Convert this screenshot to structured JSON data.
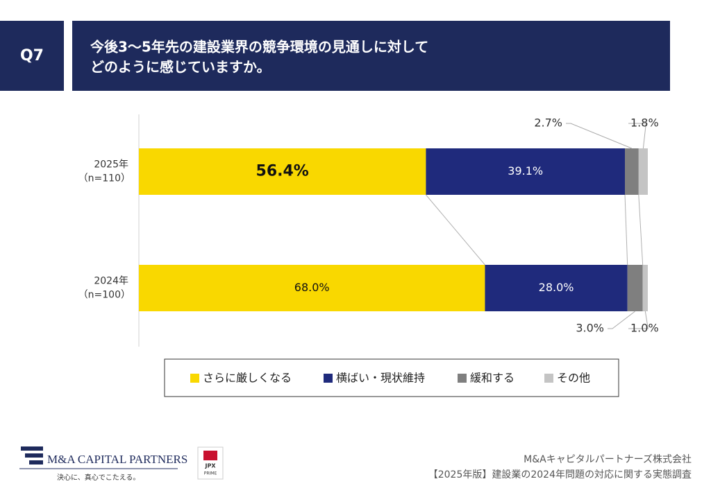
{
  "header": {
    "number": "Q7",
    "question_lines": [
      "今後3～5年先の建設業界の競争環境の見通しに対して",
      "どのように感じていますか。"
    ]
  },
  "chart_data": {
    "type": "stacked-bar-horizontal",
    "categories": [
      "2025年",
      "2024年"
    ],
    "sample_sizes": [
      "（n=110）",
      "（n=100）"
    ],
    "xlim": [
      0,
      100
    ],
    "series": [
      {
        "name": "さらに厳しくなる",
        "color": "#f9d800",
        "values": [
          56.4,
          68.0
        ],
        "value_labels": [
          "56.4%",
          "68.0%"
        ]
      },
      {
        "name": "横ばい・現状維持",
        "color": "#1f2a7c",
        "values": [
          39.1,
          28.0
        ],
        "value_labels": [
          "39.1%",
          "28.0%"
        ]
      },
      {
        "name": "緩和する",
        "color": "#7f7f7f",
        "values": [
          2.7,
          3.0
        ],
        "value_labels": [
          "2.7%",
          "3.0%"
        ]
      },
      {
        "name": "その他",
        "color": "#c4c4c4",
        "values": [
          1.8,
          1.0
        ],
        "value_labels": [
          "1.8%",
          "1.0%"
        ]
      }
    ]
  },
  "footer": {
    "logo_name": "M&A CAPITAL PARTNERS",
    "logo_tagline": "決心に、真心でこたえる。",
    "badge_top": "JPX",
    "badge_bottom": "PRIME",
    "company": "M&Aキャピタルパートナーズ株式会社",
    "report": "【2025年版】建設業の2024年問題の対応に関する実態調査"
  }
}
